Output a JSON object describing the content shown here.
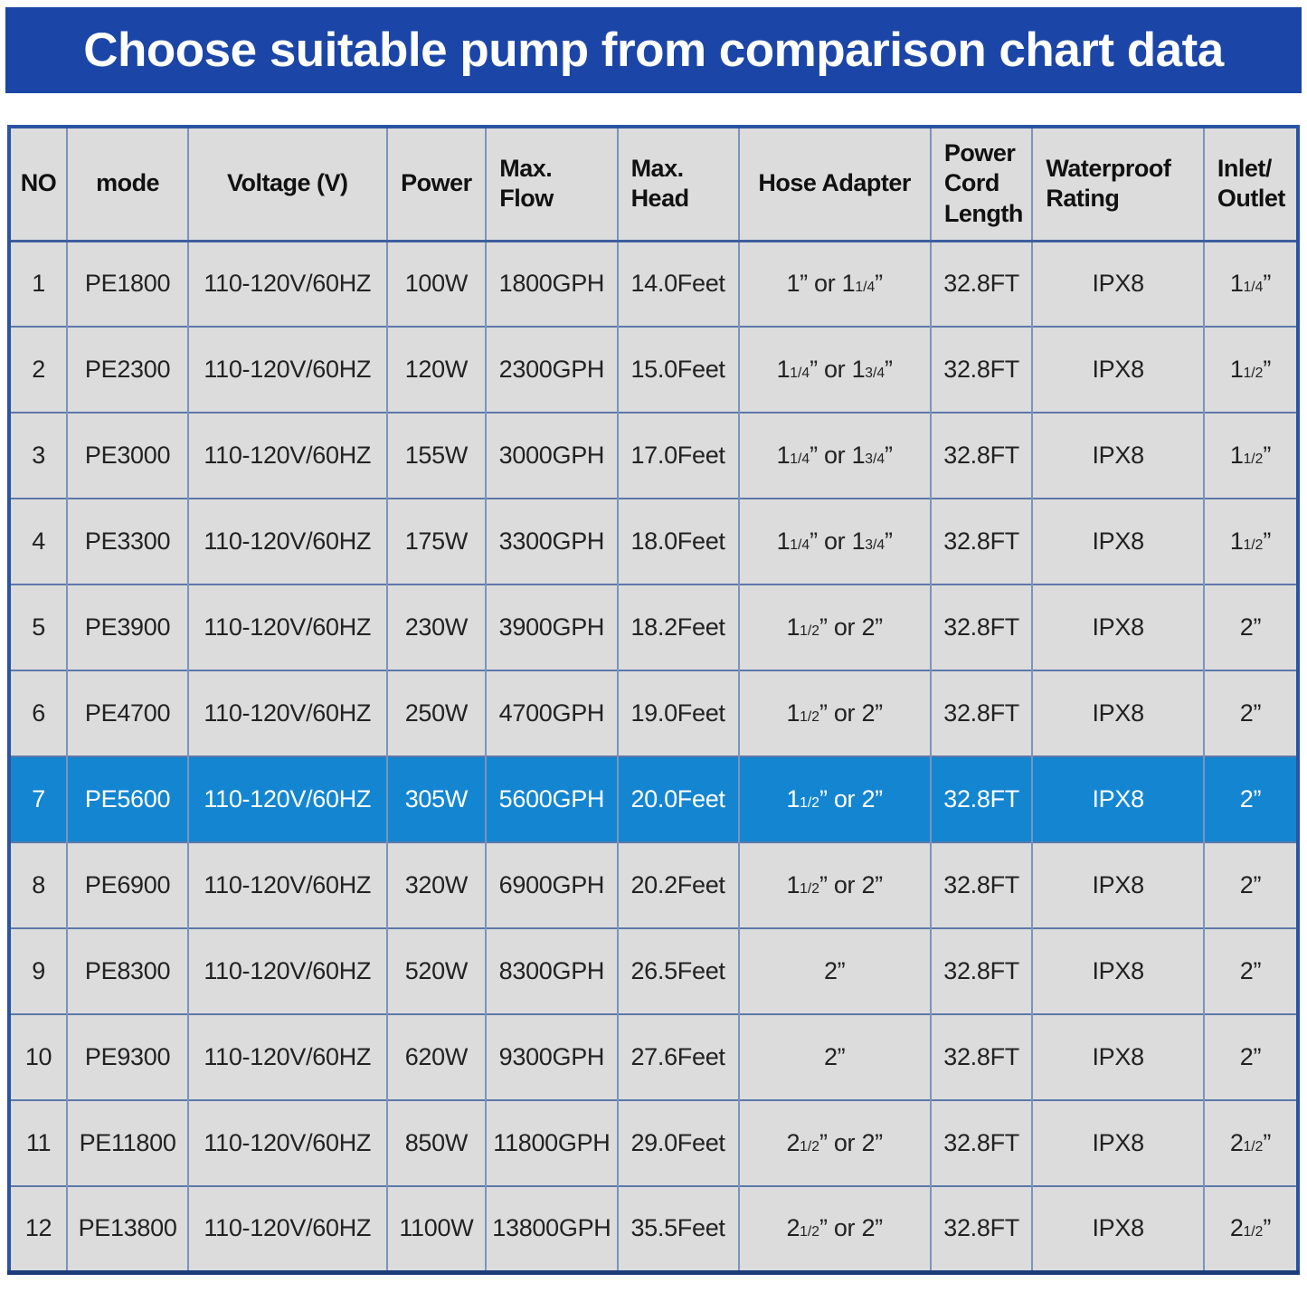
{
  "banner": {
    "title": "Choose suitable pump from comparison chart data"
  },
  "palette": {
    "banner_bg": "#1b45a7",
    "banner_text": "#ffffff",
    "cell_bg": "#dcdcdc",
    "highlight_bg": "#1486d1",
    "highlight_text": "#ffffff",
    "outer_border": "#2a54a3",
    "v_border": "#7b93bf",
    "h_border": "#5d78a9",
    "body_text": "#222222"
  },
  "chart_data": {
    "type": "table",
    "title": "Choose suitable pump from comparison chart data",
    "highlighted_row_no": 7,
    "columns": [
      {
        "key": "no",
        "label": "NO",
        "align": "center"
      },
      {
        "key": "mode",
        "label": "mode",
        "align": "center"
      },
      {
        "key": "voltage",
        "label": "Voltage (V)",
        "align": "center"
      },
      {
        "key": "power",
        "label": "Power",
        "align": "center"
      },
      {
        "key": "max_flow",
        "label": "Max.\nFlow",
        "align": "left"
      },
      {
        "key": "max_head",
        "label": "Max.\nHead",
        "align": "left"
      },
      {
        "key": "hose_adapter",
        "label": "Hose Adapter",
        "align": "center"
      },
      {
        "key": "power_cord_length",
        "label": "Power\nCord\nLength",
        "align": "left"
      },
      {
        "key": "waterproof_rating",
        "label": "Waterproof\nRating",
        "align": "left"
      },
      {
        "key": "inlet_outlet",
        "label": "Inlet/\nOutlet",
        "align": "left"
      }
    ],
    "rows": [
      {
        "no": "1",
        "mode": "PE1800",
        "voltage": "110-120V/60HZ",
        "power": "100W",
        "max_flow": "1800GPH",
        "max_head": "14.0Feet",
        "hose_adapter": "1” or 1[1/4]”",
        "power_cord_length": "32.8FT",
        "waterproof_rating": "IPX8",
        "inlet_outlet": "1[1/4]”"
      },
      {
        "no": "2",
        "mode": "PE2300",
        "voltage": "110-120V/60HZ",
        "power": "120W",
        "max_flow": "2300GPH",
        "max_head": "15.0Feet",
        "hose_adapter": "1[1/4]” or 1[3/4]”",
        "power_cord_length": "32.8FT",
        "waterproof_rating": "IPX8",
        "inlet_outlet": "1[1/2]”"
      },
      {
        "no": "3",
        "mode": "PE3000",
        "voltage": "110-120V/60HZ",
        "power": "155W",
        "max_flow": "3000GPH",
        "max_head": "17.0Feet",
        "hose_adapter": "1[1/4]” or 1[3/4]”",
        "power_cord_length": "32.8FT",
        "waterproof_rating": "IPX8",
        "inlet_outlet": "1[1/2]”"
      },
      {
        "no": "4",
        "mode": "PE3300",
        "voltage": "110-120V/60HZ",
        "power": "175W",
        "max_flow": "3300GPH",
        "max_head": "18.0Feet",
        "hose_adapter": "1[1/4]” or 1[3/4]”",
        "power_cord_length": "32.8FT",
        "waterproof_rating": "IPX8",
        "inlet_outlet": "1[1/2]”"
      },
      {
        "no": "5",
        "mode": "PE3900",
        "voltage": "110-120V/60HZ",
        "power": "230W",
        "max_flow": "3900GPH",
        "max_head": "18.2Feet",
        "hose_adapter": "1[1/2]” or 2”",
        "power_cord_length": "32.8FT",
        "waterproof_rating": "IPX8",
        "inlet_outlet": "2”"
      },
      {
        "no": "6",
        "mode": "PE4700",
        "voltage": "110-120V/60HZ",
        "power": "250W",
        "max_flow": "4700GPH",
        "max_head": "19.0Feet",
        "hose_adapter": "1[1/2]” or 2”",
        "power_cord_length": "32.8FT",
        "waterproof_rating": "IPX8",
        "inlet_outlet": "2”"
      },
      {
        "no": "7",
        "mode": "PE5600",
        "voltage": "110-120V/60HZ",
        "power": "305W",
        "max_flow": "5600GPH",
        "max_head": "20.0Feet",
        "hose_adapter": "1[1/2]” or 2”",
        "power_cord_length": "32.8FT",
        "waterproof_rating": "IPX8",
        "inlet_outlet": "2”"
      },
      {
        "no": "8",
        "mode": "PE6900",
        "voltage": "110-120V/60HZ",
        "power": "320W",
        "max_flow": "6900GPH",
        "max_head": "20.2Feet",
        "hose_adapter": "1[1/2]” or 2”",
        "power_cord_length": "32.8FT",
        "waterproof_rating": "IPX8",
        "inlet_outlet": "2”"
      },
      {
        "no": "9",
        "mode": "PE8300",
        "voltage": "110-120V/60HZ",
        "power": "520W",
        "max_flow": "8300GPH",
        "max_head": "26.5Feet",
        "hose_adapter": "2”",
        "power_cord_length": "32.8FT",
        "waterproof_rating": "IPX8",
        "inlet_outlet": "2”"
      },
      {
        "no": "10",
        "mode": "PE9300",
        "voltage": "110-120V/60HZ",
        "power": "620W",
        "max_flow": "9300GPH",
        "max_head": "27.6Feet",
        "hose_adapter": "2”",
        "power_cord_length": "32.8FT",
        "waterproof_rating": "IPX8",
        "inlet_outlet": "2”"
      },
      {
        "no": "11",
        "mode": "PE11800",
        "voltage": "110-120V/60HZ",
        "power": "850W",
        "max_flow": "11800GPH",
        "max_head": "29.0Feet",
        "hose_adapter": "2[1/2]” or 2”",
        "power_cord_length": "32.8FT",
        "waterproof_rating": "IPX8",
        "inlet_outlet": "2[1/2]”"
      },
      {
        "no": "12",
        "mode": "PE13800",
        "voltage": "110-120V/60HZ",
        "power": "1100W",
        "max_flow": "13800GPH",
        "max_head": "35.5Feet",
        "hose_adapter": "2[1/2]” or 2”",
        "power_cord_length": "32.8FT",
        "waterproof_rating": "IPX8",
        "inlet_outlet": "2[1/2]”"
      }
    ]
  }
}
